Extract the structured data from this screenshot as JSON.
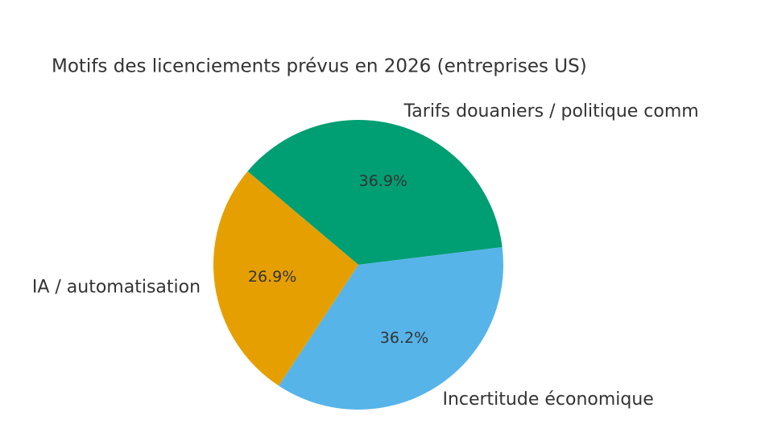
{
  "chart_data": {
    "type": "pie",
    "title": "Motifs des licenciements prévus en 2026 (entreprises US)",
    "categories": [
      "Tarifs douaniers / politique comm",
      "IA / automatisation",
      "Incertitude économique"
    ],
    "values": [
      36.9,
      26.9,
      36.2
    ],
    "value_labels": [
      "36.9%",
      "26.9%",
      "36.2%"
    ],
    "colors": [
      "#009E73",
      "#E69F00",
      "#56B4E9"
    ]
  }
}
